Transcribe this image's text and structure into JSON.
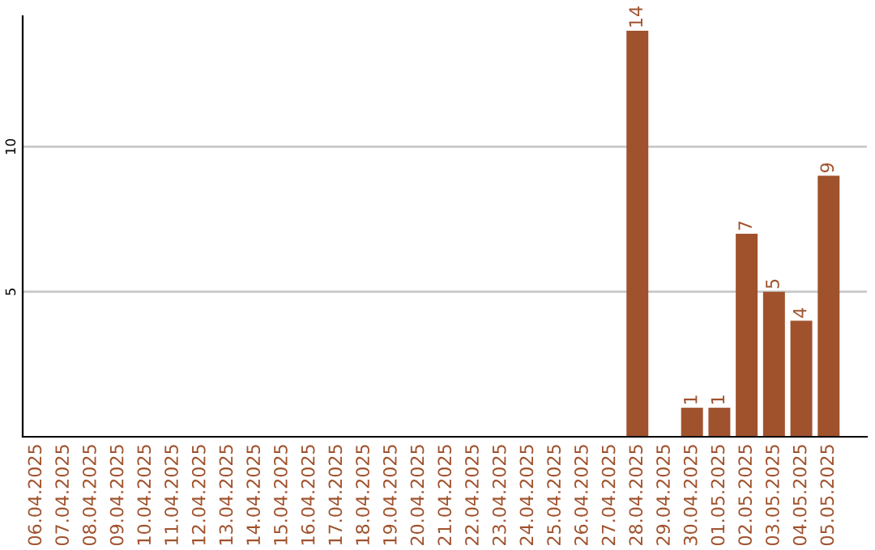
{
  "chart_data": {
    "type": "bar",
    "categories": [
      "06.04.2025",
      "07.04.2025",
      "08.04.2025",
      "09.04.2025",
      "10.04.2025",
      "11.04.2025",
      "12.04.2025",
      "13.04.2025",
      "14.04.2025",
      "15.04.2025",
      "16.04.2025",
      "17.04.2025",
      "18.04.2025",
      "19.04.2025",
      "20.04.2025",
      "21.04.2025",
      "22.04.2025",
      "23.04.2025",
      "24.04.2025",
      "25.04.2025",
      "26.04.2025",
      "27.04.2025",
      "28.04.2025",
      "29.04.2025",
      "30.04.2025",
      "01.05.2025",
      "02.05.2025",
      "03.05.2025",
      "04.05.2025",
      "05.05.2025"
    ],
    "values": [
      0,
      0,
      0,
      0,
      0,
      0,
      0,
      0,
      0,
      0,
      0,
      0,
      0,
      0,
      0,
      0,
      0,
      0,
      0,
      0,
      0,
      0,
      14,
      0,
      1,
      1,
      7,
      5,
      4,
      9
    ],
    "value_labels": [
      null,
      null,
      null,
      null,
      null,
      null,
      null,
      null,
      null,
      null,
      null,
      null,
      null,
      null,
      null,
      null,
      null,
      null,
      null,
      null,
      null,
      null,
      "14",
      null,
      "1",
      "1",
      "7",
      "5",
      "4",
      "9"
    ],
    "color": "#a0522d",
    "ylim": [
      0,
      14.5
    ],
    "yticks": [
      5,
      10
    ],
    "grid": "y"
  }
}
